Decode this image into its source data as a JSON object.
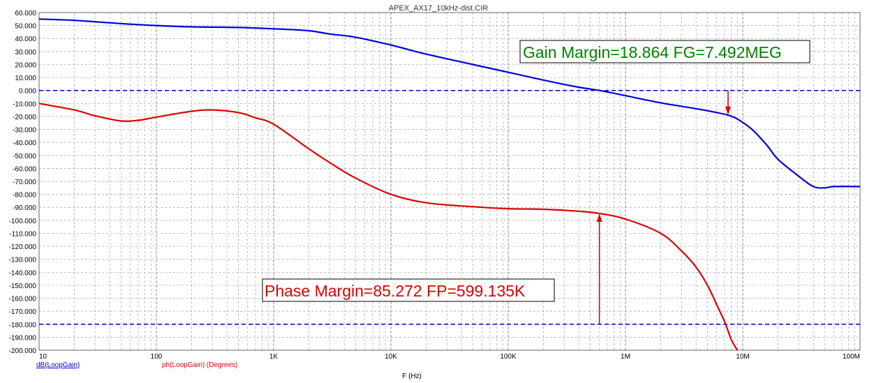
{
  "chart_data": {
    "type": "line",
    "title": "APEX_AX17_10kHz-dist.CIR",
    "xlabel": "F (Hz)",
    "x_scale": "log",
    "xlim": [
      10,
      100000000
    ],
    "ylim": [
      -200,
      60
    ],
    "y_ticks": [
      "60.000",
      "50.000",
      "40.000",
      "30.000",
      "20.000",
      "10.000",
      "0.000",
      "-10.000",
      "-20.000",
      "-30.000",
      "-40.000",
      "-50.000",
      "-60.000",
      "-70.000",
      "-80.000",
      "-90.000",
      "-100.000",
      "-110.000",
      "-120.000",
      "-130.000",
      "-140.000",
      "-150.000",
      "-160.000",
      "-170.000",
      "-180.000",
      "-190.000",
      "-200.000"
    ],
    "x_ticks": [
      {
        "value": 10,
        "label": "10"
      },
      {
        "value": 100,
        "label": "100"
      },
      {
        "value": 1000,
        "label": "1K"
      },
      {
        "value": 10000,
        "label": "10K"
      },
      {
        "value": 100000,
        "label": "100K"
      },
      {
        "value": 1000000,
        "label": "1M"
      },
      {
        "value": 10000000,
        "label": "10M"
      },
      {
        "value": 100000000,
        "label": "100M"
      }
    ],
    "grid": true,
    "colors": {
      "gain": "#0000dd",
      "phase": "#dd0000",
      "ref": "#0000aa",
      "annotation_gain": "#008000",
      "annotation_phase": "#dd0000",
      "grid": "#a0a0a0"
    },
    "series": [
      {
        "name": "dB(LoopGain)",
        "color": "#0000dd",
        "x": [
          10,
          20,
          50,
          100,
          200,
          500,
          1000,
          2000,
          3000,
          5000,
          10000,
          20000,
          50000,
          100000,
          200000,
          400000,
          600000,
          1000000,
          2000000,
          4000000,
          6000000,
          7500000,
          9000000,
          12000000,
          16000000,
          20000000,
          30000000,
          40000000,
          50000000,
          60000000,
          100000000
        ],
        "values": [
          55,
          54,
          51.5,
          50,
          49,
          48.5,
          47.5,
          46,
          43.5,
          41,
          35,
          28,
          20,
          14,
          8,
          2.5,
          0,
          -4,
          -9.5,
          -14,
          -17,
          -19,
          -22,
          -30,
          -42,
          -53,
          -66,
          -74,
          -75,
          -74,
          -74
        ]
      },
      {
        "name": "ph(LoopGain) (Degrees)",
        "color": "#dd0000",
        "x": [
          10,
          20,
          30,
          50,
          70,
          100,
          200,
          300,
          500,
          700,
          1000,
          2000,
          3000,
          5000,
          10000,
          20000,
          50000,
          100000,
          200000,
          400000,
          600000,
          1000000,
          2000000,
          3000000,
          4000000,
          5000000,
          6000000,
          7000000,
          8000000,
          9000000
        ],
        "values": [
          -10,
          -15,
          -19.5,
          -23.5,
          -23,
          -20.5,
          -16,
          -15,
          -17,
          -21,
          -26,
          -45,
          -55.5,
          -67.5,
          -80,
          -86.5,
          -89.5,
          -91,
          -91.5,
          -93,
          -94.7,
          -99,
          -110,
          -123.5,
          -136,
          -150,
          -165,
          -178,
          -192,
          -200
        ]
      }
    ],
    "reference_lines": [
      0,
      -180
    ],
    "legend": {
      "gain": "dB(LoopGain)",
      "phase": "ph(LoopGain) (Degrees)",
      "placement": "bottom-left"
    },
    "annotations": [
      {
        "text": "Gain Margin=18.864 FG=7.492MEG",
        "x": 7492000,
        "y": -18.864,
        "arrow_from_y": 0
      },
      {
        "text": "Phase Margin=85.272 FP=599.135K",
        "x": 599135,
        "y": -94.728,
        "arrow_from_y": -180
      }
    ]
  }
}
